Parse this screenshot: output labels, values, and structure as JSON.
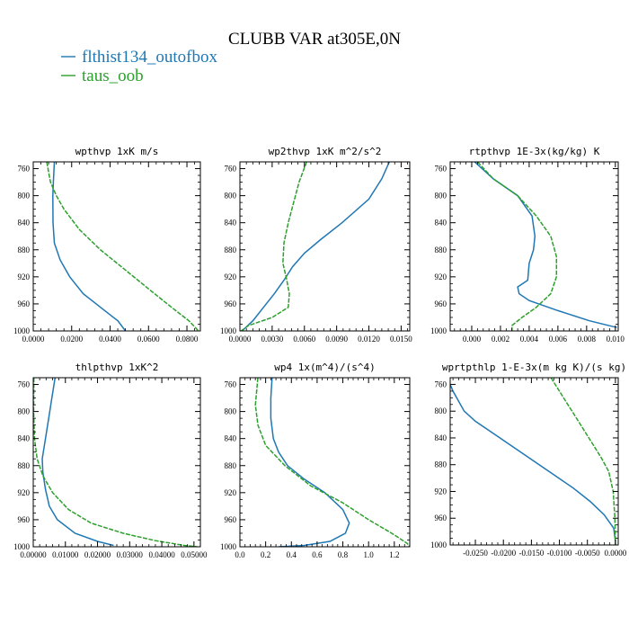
{
  "figure": {
    "title": "CLUBB VAR at305E,0N",
    "legend": [
      {
        "label": "flthist134_outofbox",
        "color": "#1f77b4"
      },
      {
        "label": "taus_oob",
        "color": "#2ca02c"
      }
    ]
  },
  "chart_data": [
    {
      "type": "line",
      "title": "wpthvp  1xK m/s",
      "xlim": [
        0,
        0.087
      ],
      "ylim": [
        1000,
        750
      ],
      "xticks": [
        "0.0000",
        "0.0200",
        "0.0400",
        "0.0600",
        "0.0800"
      ],
      "xtick_values": [
        0,
        0.02,
        0.04,
        0.06,
        0.08
      ],
      "yticks": [
        "760",
        "800",
        "840",
        "880",
        "920",
        "960",
        "1000"
      ],
      "ytick_values": [
        760,
        800,
        840,
        880,
        920,
        960,
        1000
      ],
      "series": [
        {
          "name": "flthist134_outofbox",
          "color": "#1f77b4",
          "x": [
            0.011,
            0.0105,
            0.0102,
            0.0103,
            0.011,
            0.014,
            0.019,
            0.026,
            0.035,
            0.044,
            0.048
          ],
          "y": [
            750,
            780,
            800,
            840,
            870,
            895,
            920,
            945,
            965,
            985,
            1000
          ]
        },
        {
          "name": "taus_oob",
          "color": "#2ca02c",
          "x": [
            0.007,
            0.009,
            0.012,
            0.016,
            0.024,
            0.035,
            0.048,
            0.061,
            0.072,
            0.081,
            0.086
          ],
          "y": [
            750,
            780,
            800,
            820,
            850,
            880,
            910,
            940,
            965,
            985,
            1000
          ]
        }
      ]
    },
    {
      "type": "line",
      "title": "wp2thvp  1xK m^2/s^2",
      "xlim": [
        0,
        0.0158
      ],
      "ylim": [
        1000,
        750
      ],
      "xticks": [
        "0.0000",
        "0.0030",
        "0.0060",
        "0.0090",
        "0.0120",
        "0.0150"
      ],
      "xtick_values": [
        0,
        0.003,
        0.006,
        0.009,
        0.012,
        0.015
      ],
      "yticks": [
        "760",
        "800",
        "840",
        "880",
        "920",
        "960",
        "1000"
      ],
      "ytick_values": [
        760,
        800,
        840,
        880,
        920,
        960,
        1000
      ],
      "series": [
        {
          "name": "flthist134_outofbox",
          "color": "#1f77b4",
          "x": [
            0.0139,
            0.0132,
            0.012,
            0.0095,
            0.0075,
            0.006,
            0.0049,
            0.0041,
            0.0032,
            0.0022,
            0.0012,
            0.0002
          ],
          "y": [
            750,
            775,
            805,
            840,
            865,
            885,
            905,
            925,
            945,
            965,
            985,
            1000
          ]
        },
        {
          "name": "taus_oob",
          "color": "#2ca02c",
          "x": [
            0.0062,
            0.0055,
            0.005,
            0.0045,
            0.0041,
            0.004,
            0.0043,
            0.0046,
            0.0045,
            0.003,
            0.0008,
            0.0001
          ],
          "y": [
            750,
            780,
            810,
            840,
            870,
            900,
            920,
            945,
            965,
            980,
            992,
            1000
          ]
        }
      ]
    },
    {
      "type": "line",
      "title": "rtpthvp  1E-3x(kg/kg) K",
      "xlim": [
        -0.0015,
        0.0102
      ],
      "ylim": [
        1000,
        750
      ],
      "xticks": [
        "0.000",
        "0.002",
        "0.004",
        "0.006",
        "0.008",
        "0.010"
      ],
      "xtick_values": [
        0,
        0.002,
        0.004,
        0.006,
        0.008,
        0.01
      ],
      "yticks": [
        "760",
        "800",
        "840",
        "880",
        "920",
        "960",
        "1000"
      ],
      "ytick_values": [
        760,
        800,
        840,
        880,
        920,
        960,
        1000
      ],
      "series": [
        {
          "name": "flthist134_outofbox",
          "color": "#1f77b4",
          "x": [
            0.0002,
            0.0015,
            0.0032,
            0.0042,
            0.0044,
            0.0043,
            0.004,
            0.0039,
            0.0032,
            0.0033,
            0.004,
            0.006,
            0.0082,
            0.0101
          ],
          "y": [
            750,
            775,
            800,
            830,
            860,
            880,
            900,
            925,
            935,
            945,
            955,
            970,
            985,
            995
          ]
        },
        {
          "name": "taus_oob",
          "color": "#2ca02c",
          "x": [
            0.0004,
            0.0015,
            0.0032,
            0.0045,
            0.0055,
            0.0059,
            0.0059,
            0.0055,
            0.0045,
            0.0035,
            0.0028,
            0.0028
          ],
          "y": [
            750,
            775,
            800,
            830,
            860,
            890,
            920,
            945,
            965,
            980,
            992,
            1000
          ]
        }
      ]
    },
    {
      "type": "line",
      "title": "thlpthvp  1xK^2",
      "xlim": [
        0,
        0.052
      ],
      "ylim": [
        1000,
        750
      ],
      "xticks": [
        "0.00000",
        "0.01000",
        "0.02000",
        "0.03000",
        "0.04000",
        "0.05000"
      ],
      "xtick_values": [
        0,
        0.01,
        0.02,
        0.03,
        0.04,
        0.05
      ],
      "yticks": [
        "760",
        "800",
        "840",
        "880",
        "920",
        "960",
        "1000"
      ],
      "ytick_values": [
        760,
        800,
        840,
        880,
        920,
        960,
        1000
      ],
      "series": [
        {
          "name": "flthist134_outofbox",
          "color": "#1f77b4",
          "x": [
            0.0068,
            0.0058,
            0.0048,
            0.0038,
            0.0028,
            0.003,
            0.0038,
            0.005,
            0.0075,
            0.013,
            0.02,
            0.025
          ],
          "y": [
            750,
            780,
            810,
            840,
            870,
            890,
            915,
            940,
            960,
            980,
            992,
            998
          ]
        },
        {
          "name": "taus_oob",
          "color": "#2ca02c",
          "x": [
            0.0002,
            0.0001,
            0.0004,
            0.0012,
            0.003,
            0.006,
            0.011,
            0.018,
            0.028,
            0.038,
            0.047,
            0.051
          ],
          "y": [
            750,
            800,
            840,
            870,
            895,
            920,
            945,
            965,
            980,
            991,
            998,
            1000
          ]
        }
      ]
    },
    {
      "type": "line",
      "title": "wp4  1x(m^4)/(s^4)",
      "xlim": [
        0,
        1.32
      ],
      "ylim": [
        1000,
        750
      ],
      "xticks": [
        "0.0",
        "0.2",
        "0.4",
        "0.6",
        "0.8",
        "1.0",
        "1.2"
      ],
      "xtick_values": [
        0,
        0.2,
        0.4,
        0.6,
        0.8,
        1.0,
        1.2
      ],
      "yticks": [
        "760",
        "800",
        "840",
        "880",
        "920",
        "960",
        "1000"
      ],
      "ytick_values": [
        760,
        800,
        840,
        880,
        920,
        960,
        1000
      ],
      "series": [
        {
          "name": "flthist134_outofbox",
          "color": "#1f77b4",
          "x": [
            0.25,
            0.24,
            0.24,
            0.26,
            0.3,
            0.37,
            0.5,
            0.66,
            0.8,
            0.85,
            0.82,
            0.7,
            0.5,
            0.3
          ],
          "y": [
            750,
            780,
            810,
            840,
            860,
            880,
            900,
            920,
            945,
            965,
            980,
            992,
            998,
            1000
          ]
        },
        {
          "name": "taus_oob",
          "color": "#2ca02c",
          "x": [
            0.14,
            0.12,
            0.14,
            0.2,
            0.35,
            0.55,
            0.8,
            1.0,
            1.18,
            1.3,
            1.32
          ],
          "y": [
            750,
            790,
            820,
            850,
            880,
            910,
            935,
            960,
            980,
            995,
            1000
          ]
        }
      ]
    },
    {
      "type": "line",
      "title": "wprtpthlp  1-E-3x(m kg K)/(s kg)",
      "xlim": [
        -0.0295,
        0.0005
      ],
      "ylim": [
        1000,
        750
      ],
      "xticks": [
        "-0.0250",
        "-0.0200",
        "-0.0150",
        "-0.0100",
        "-0.0050",
        "0.0000"
      ],
      "xtick_values": [
        -0.025,
        -0.02,
        -0.015,
        -0.01,
        -0.005,
        0
      ],
      "yticks": [
        "760",
        "800",
        "840",
        "880",
        "920",
        "960",
        "1000"
      ],
      "ytick_values": [
        760,
        800,
        840,
        880,
        920,
        960,
        1000
      ],
      "series": [
        {
          "name": "flthist134_outofbox",
          "color": "#1f77b4",
          "x": [
            -0.0295,
            -0.029,
            -0.028,
            -0.027,
            -0.025,
            -0.0215,
            -0.018,
            -0.0145,
            -0.011,
            -0.0075,
            -0.0045,
            -0.002,
            -0.0003,
            0.0
          ],
          "y": [
            760,
            770,
            785,
            800,
            815,
            835,
            855,
            875,
            895,
            915,
            935,
            955,
            975,
            995
          ]
        },
        {
          "name": "taus_oob",
          "color": "#2ca02c",
          "x": [
            -0.0115,
            -0.01,
            -0.0085,
            -0.007,
            -0.0055,
            -0.004,
            -0.0025,
            -0.0012,
            -0.0004,
            -0.0001,
            0.0
          ],
          "y": [
            750,
            770,
            790,
            810,
            830,
            850,
            870,
            890,
            920,
            960,
            1000
          ]
        }
      ]
    }
  ]
}
